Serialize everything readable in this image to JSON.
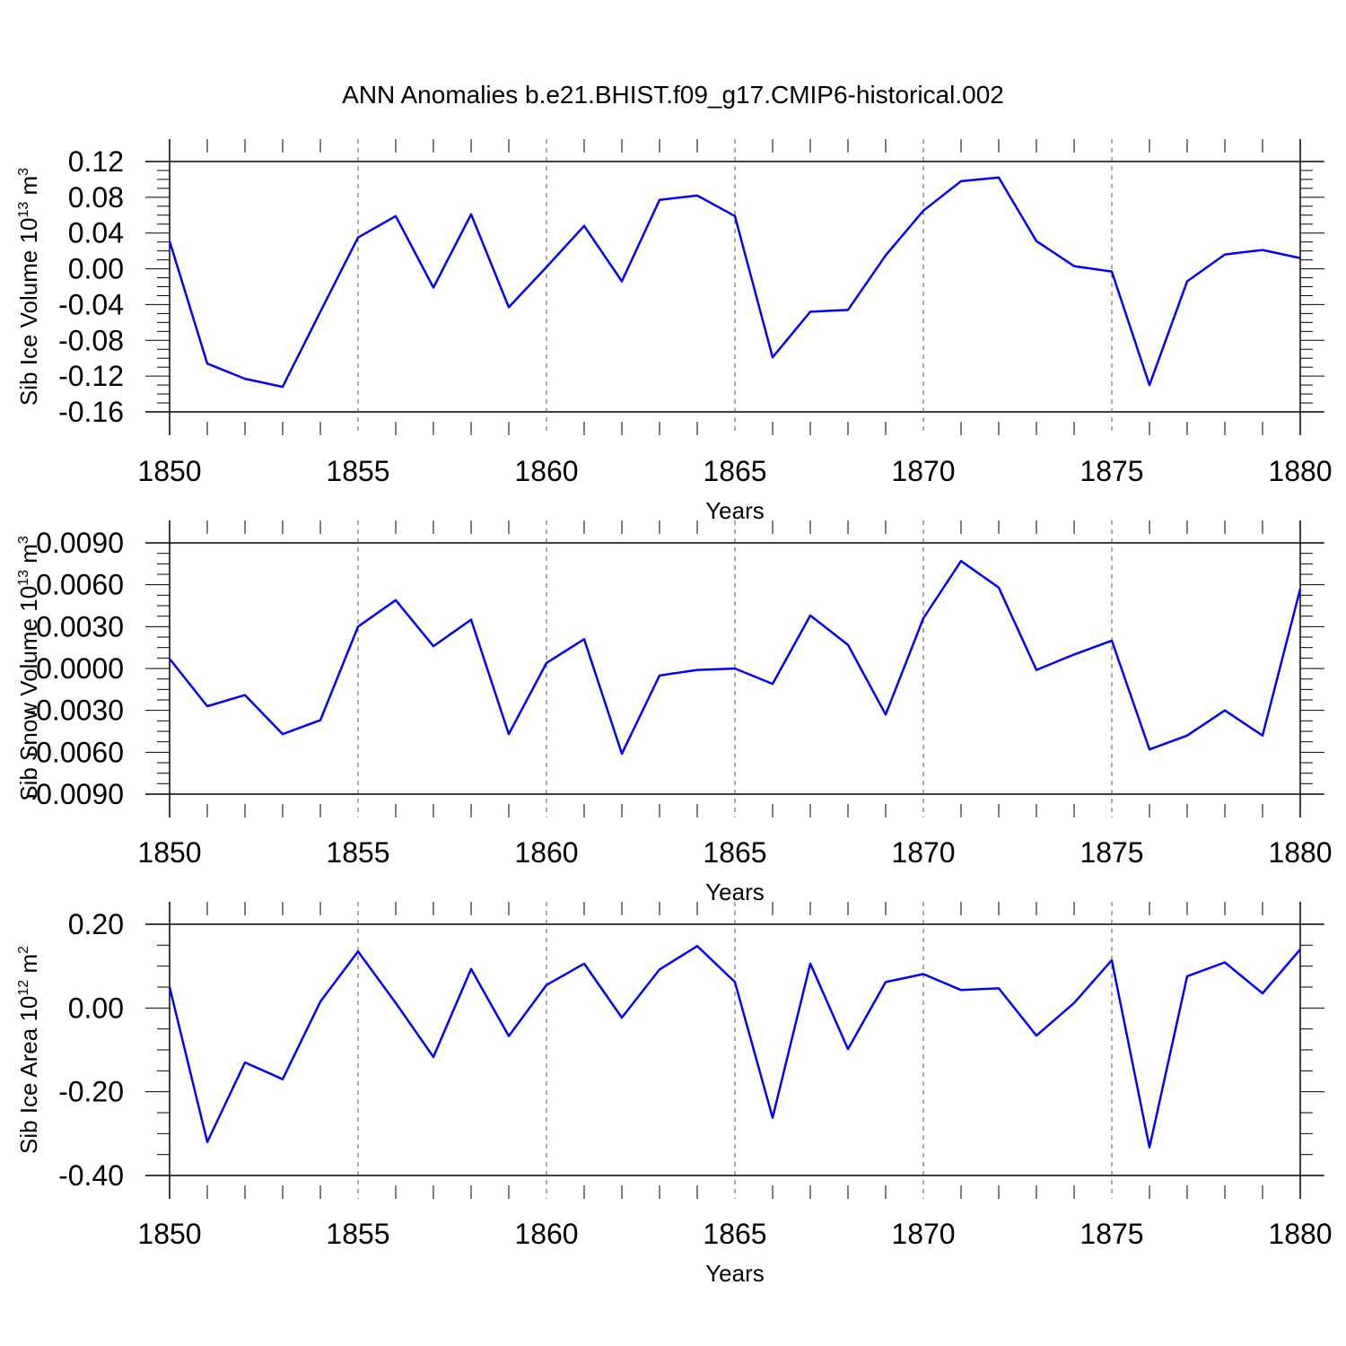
{
  "title": "ANN Anomalies b.e21.BHIST.f09_g17.CMIP6-historical.002",
  "colors": {
    "line": "#0000ff",
    "axis": "#000000",
    "grid": "#555555"
  },
  "chart_data": [
    {
      "type": "line",
      "xlabel": "Years",
      "ylabel": "Sib Ice Volume 10",
      "ylabel_exp": "13",
      "ylabel_unit": " m",
      "ylabel_unit_exp": "3",
      "xlim": [
        1850,
        1880
      ],
      "ylim": [
        -0.16,
        0.12
      ],
      "x_ticks": [
        "1850",
        "1855",
        "1860",
        "1865",
        "1870",
        "1875",
        "1880"
      ],
      "y_ticks": [
        "0.12",
        "0.08",
        "0.04",
        "0.00",
        "-0.04",
        "-0.08",
        "-0.12",
        "-0.16"
      ],
      "grid": "vertical dashed at major x ticks",
      "x": [
        1850,
        1851,
        1852,
        1853,
        1854,
        1855,
        1856,
        1857,
        1858,
        1859,
        1860,
        1861,
        1862,
        1863,
        1864,
        1865,
        1866,
        1867,
        1868,
        1869,
        1870,
        1871,
        1872,
        1873,
        1874,
        1875,
        1876,
        1877,
        1878,
        1879,
        1880
      ],
      "values": [
        0.031,
        -0.106,
        -0.123,
        -0.132,
        -0.048,
        0.035,
        0.059,
        -0.021,
        0.061,
        -0.043,
        0.002,
        0.048,
        -0.014,
        0.077,
        0.082,
        0.059,
        -0.099,
        -0.048,
        -0.046,
        0.015,
        0.065,
        0.098,
        0.102,
        0.031,
        0.003,
        -0.003,
        -0.13,
        -0.014,
        0.016,
        0.021,
        0.012
      ]
    },
    {
      "type": "line",
      "xlabel": "Years",
      "ylabel": "Sib Snow Volume 10",
      "ylabel_exp": "13",
      "ylabel_unit": " m",
      "ylabel_unit_exp": "3",
      "xlim": [
        1850,
        1880
      ],
      "ylim": [
        -0.009,
        0.009
      ],
      "x_ticks": [
        "1850",
        "1855",
        "1860",
        "1865",
        "1870",
        "1875",
        "1880"
      ],
      "y_ticks": [
        "0.0090",
        "0.0060",
        "0.0030",
        "0.0000",
        "-0.0030",
        "-0.0060",
        "-0.0090"
      ],
      "grid": "vertical dashed at major x ticks",
      "x": [
        1850,
        1851,
        1852,
        1853,
        1854,
        1855,
        1856,
        1857,
        1858,
        1859,
        1860,
        1861,
        1862,
        1863,
        1864,
        1865,
        1866,
        1867,
        1868,
        1869,
        1870,
        1871,
        1872,
        1873,
        1874,
        1875,
        1876,
        1877,
        1878,
        1879,
        1880
      ],
      "values": [
        0.0007,
        -0.0027,
        -0.0019,
        -0.0047,
        -0.0037,
        0.003,
        0.0049,
        0.0016,
        0.0035,
        -0.0047,
        0.0004,
        0.0021,
        -0.0061,
        -0.0005,
        -0.0001,
        0.0,
        -0.0011,
        0.0038,
        0.0017,
        -0.0033,
        0.0036,
        0.0077,
        0.0058,
        -0.0001,
        0.001,
        0.002,
        -0.0058,
        -0.0048,
        -0.003,
        -0.0048,
        0.0057
      ]
    },
    {
      "type": "line",
      "xlabel": "Years",
      "ylabel": "Sib Ice Area 10",
      "ylabel_exp": "12",
      "ylabel_unit": " m",
      "ylabel_unit_exp": "2",
      "xlim": [
        1850,
        1880
      ],
      "ylim": [
        -0.4,
        0.2
      ],
      "x_ticks": [
        "1850",
        "1855",
        "1860",
        "1865",
        "1870",
        "1875",
        "1880"
      ],
      "y_ticks": [
        "0.20",
        "0.00",
        "-0.20",
        "-0.40"
      ],
      "grid": "vertical dashed at major x ticks",
      "x": [
        1850,
        1851,
        1852,
        1853,
        1854,
        1855,
        1856,
        1857,
        1858,
        1859,
        1860,
        1861,
        1862,
        1863,
        1864,
        1865,
        1866,
        1867,
        1868,
        1869,
        1870,
        1871,
        1872,
        1873,
        1874,
        1875,
        1876,
        1877,
        1878,
        1879,
        1880
      ],
      "values": [
        0.05,
        -0.32,
        -0.13,
        -0.17,
        0.015,
        0.135,
        0.012,
        -0.117,
        0.093,
        -0.067,
        0.055,
        0.106,
        -0.023,
        0.092,
        0.148,
        0.062,
        -0.262,
        0.106,
        -0.098,
        0.062,
        0.081,
        0.043,
        0.047,
        -0.066,
        0.012,
        0.114,
        -0.333,
        0.076,
        0.109,
        0.035,
        0.14
      ]
    }
  ]
}
